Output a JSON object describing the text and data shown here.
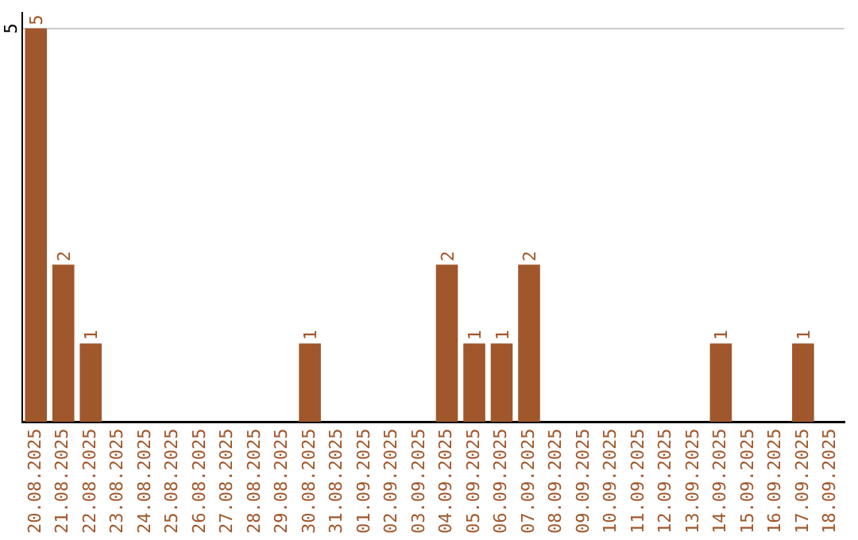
{
  "chart_data": {
    "type": "bar",
    "categories": [
      "20.08.2025",
      "21.08.2025",
      "22.08.2025",
      "23.08.2025",
      "24.08.2025",
      "25.08.2025",
      "26.08.2025",
      "27.08.2025",
      "28.08.2025",
      "29.08.2025",
      "30.08.2025",
      "31.08.2025",
      "01.09.2025",
      "02.09.2025",
      "03.09.2025",
      "04.09.2025",
      "05.09.2025",
      "06.09.2025",
      "07.09.2025",
      "08.09.2025",
      "09.09.2025",
      "10.09.2025",
      "11.09.2025",
      "12.09.2025",
      "13.09.2025",
      "14.09.2025",
      "15.09.2025",
      "16.09.2025",
      "17.09.2025",
      "18.09.2025"
    ],
    "values": [
      5,
      2,
      1,
      0,
      0,
      0,
      0,
      0,
      0,
      0,
      1,
      0,
      0,
      0,
      0,
      2,
      1,
      1,
      2,
      0,
      0,
      0,
      0,
      0,
      0,
      1,
      0,
      0,
      1,
      0
    ],
    "value_labels": [
      "5",
      "2",
      "1",
      null,
      null,
      null,
      null,
      null,
      null,
      null,
      "1",
      null,
      null,
      null,
      null,
      "2",
      "1",
      "1",
      "2",
      null,
      null,
      null,
      null,
      null,
      null,
      "1",
      null,
      null,
      "1",
      null
    ],
    "color": "#a0572b",
    "ylim": [
      0,
      5.2
    ],
    "yticks": [
      5
    ],
    "grid": "y",
    "legend": false
  }
}
